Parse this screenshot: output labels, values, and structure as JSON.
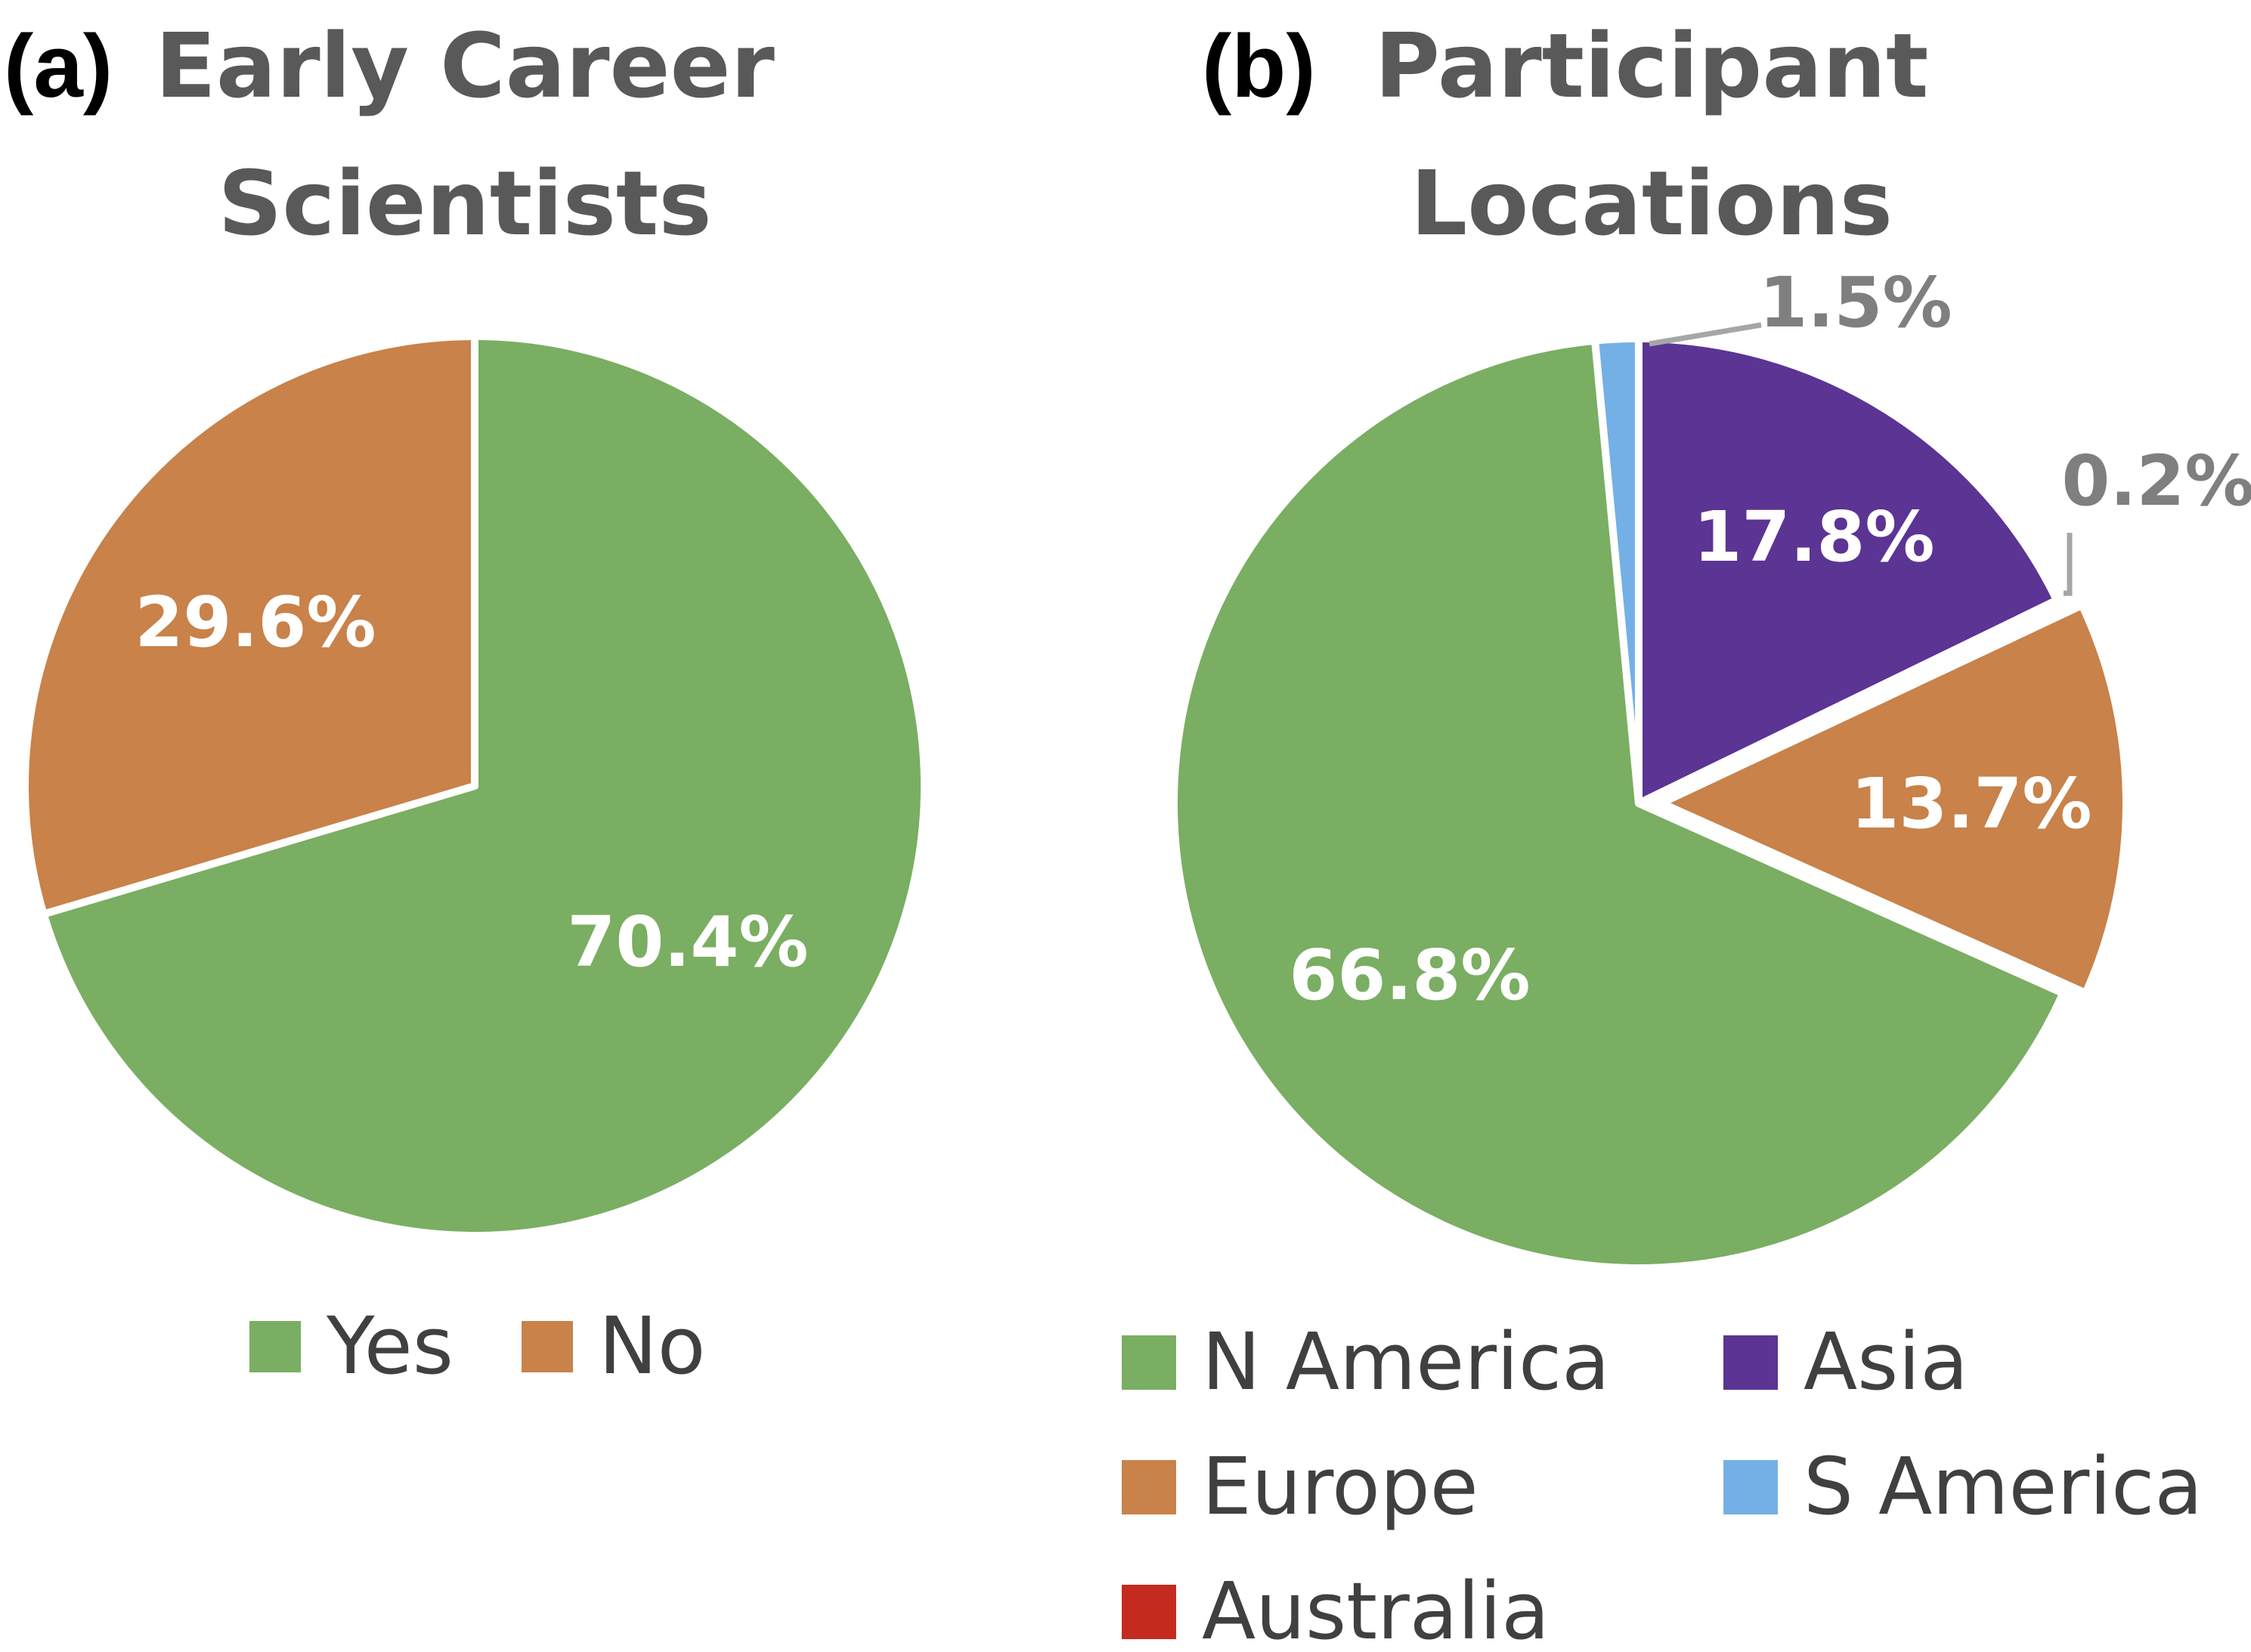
{
  "chart_data": [
    {
      "type": "pie",
      "panel_label": "(a)",
      "title": [
        "Early Career",
        "Scientists"
      ],
      "categories": [
        "Yes",
        "No"
      ],
      "values": [
        70.4,
        29.6
      ],
      "labels": [
        "70.4%",
        "29.6%"
      ],
      "colors": [
        "#7aae62",
        "#c8824a"
      ],
      "label_color": "#ffffff",
      "legend": [
        "Yes",
        "No"
      ],
      "legend_position": "bottom"
    },
    {
      "type": "pie",
      "panel_label": "(b)",
      "title": [
        "Participant",
        "Locations"
      ],
      "categories": [
        "Asia",
        "Australia",
        "Europe",
        "N America",
        "S America"
      ],
      "values": [
        17.8,
        0.2,
        13.7,
        66.8,
        1.5
      ],
      "labels": [
        "17.8%",
        "0.2%",
        "13.7%",
        "66.8%",
        "1.5%"
      ],
      "colors": [
        "#5b3494",
        "#c52a1e",
        "#c8824a",
        "#7aae62",
        "#74b0e6"
      ],
      "label_colors": [
        "#ffffff",
        "#7f7f7f",
        "#ffffff",
        "#ffffff",
        "#7f7f7f"
      ],
      "exploded": "Europe",
      "legend": [
        "N America",
        "Asia",
        "Europe",
        "S America",
        "Australia"
      ],
      "legend_colors": [
        "#7aae62",
        "#5b3494",
        "#c8824a",
        "#74b0e6",
        "#c52a1e"
      ],
      "legend_position": "bottom"
    }
  ]
}
